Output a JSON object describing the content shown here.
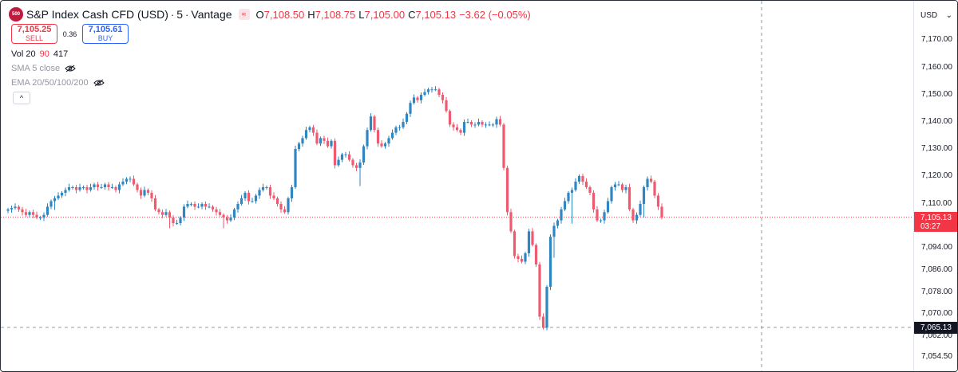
{
  "header": {
    "logo_text": "500",
    "title": "S&P Index Cash CFD (USD)",
    "sep1": "·",
    "interval": "5",
    "sep2": "·",
    "broker": "Vantage",
    "ohlc": {
      "o_label": "O",
      "o_value": "7,108.50",
      "h_label": "H",
      "h_value": "7,108.75",
      "l_label": "L",
      "l_value": "7,105.00",
      "c_label": "C",
      "c_value": "7,105.13",
      "change": "−3.62 (−0.05%)"
    }
  },
  "trade": {
    "sell_price": "7,105.25",
    "sell_label": "SELL",
    "spread": "0.36",
    "buy_price": "7,105.61",
    "buy_label": "BUY"
  },
  "indicators": {
    "vol_label": "Vol 20",
    "vol_a": "90",
    "vol_b": "417",
    "sma_label": "SMA 5 close",
    "ema_label": "EMA 20/50/100/200",
    "collapse_glyph": "^"
  },
  "axis": {
    "currency": "USD",
    "currency_glyph": "⌄",
    "last_price": "7,105.13",
    "countdown": "03:27",
    "crosshair_price": "7,065.13"
  },
  "colors": {
    "up": "#2f86c0",
    "down": "#ee5a6f",
    "last_line": "#f23645"
  },
  "chart_data": {
    "type": "candlestick",
    "y_ticks": [
      7170,
      7160,
      7150,
      7140,
      7130,
      7120,
      7110,
      7094,
      7086,
      7078,
      7070,
      7062,
      7054.5
    ],
    "y_tick_labels": [
      "7,170.00",
      "7,160.00",
      "7,150.00",
      "7,140.00",
      "7,130.00",
      "7,120.00",
      "7,110.00",
      "7,094.00",
      "7,086.00",
      "7,078.00",
      "7,070.00",
      "7,062.00",
      "7,054.50"
    ],
    "last_price": 7105.13,
    "crosshair_price": 7065.13,
    "closes": [
      7108,
      7108.5,
      7109,
      7108,
      7107,
      7106,
      7107,
      7106,
      7105,
      7105,
      7106,
      7109,
      7111,
      7112,
      7113,
      7114,
      7115,
      7116,
      7116,
      7115,
      7116,
      7116,
      7115,
      7116,
      7117,
      7116,
      7116,
      7117,
      7116,
      7116,
      7115,
      7117,
      7118,
      7119,
      7119,
      7117,
      7115,
      7113,
      7115,
      7114,
      7112,
      7108,
      7107,
      7106,
      7107,
      7105,
      7103,
      7103,
      7105,
      7109,
      7110,
      7110,
      7109,
      7109,
      7110,
      7109,
      7109,
      7108,
      7107,
      7106,
      7105,
      7104,
      7105,
      7108,
      7110,
      7112,
      7114,
      7111,
      7111,
      7113,
      7115,
      7116,
      7116,
      7113,
      7112,
      7110,
      7108,
      7107,
      7112,
      7116,
      7130,
      7132,
      7134,
      7137,
      7138,
      7136,
      7132,
      7134,
      7133,
      7131,
      7133,
      7124,
      7126,
      7128,
      7128,
      7126,
      7124,
      7123,
      7125,
      7131,
      7137,
      7142,
      7137,
      7132,
      7131,
      7132,
      7134,
      7136,
      7138,
      7138,
      7140,
      7143,
      7147,
      7149,
      7148,
      7150,
      7151,
      7152,
      7152,
      7152,
      7150,
      7148,
      7144,
      7139,
      7138,
      7137,
      7136,
      7140,
      7140,
      7139,
      7139,
      7140,
      7139,
      7139,
      7139,
      7139,
      7141,
      7139,
      7123,
      7107,
      7100,
      7091,
      7090,
      7089,
      7092,
      7100,
      7095,
      7088,
      7069,
      7065,
      7080,
      7098,
      7102,
      7104,
      7108,
      7111,
      7114,
      7115,
      7118,
      7120,
      7118,
      7116,
      7114,
      7108,
      7104,
      7104,
      7107,
      7111,
      7116,
      7117,
      7117,
      7115,
      7116,
      7108,
      7104,
      7106,
      7110,
      7116,
      7119,
      7118,
      7113,
      7109,
      7105
    ]
  }
}
